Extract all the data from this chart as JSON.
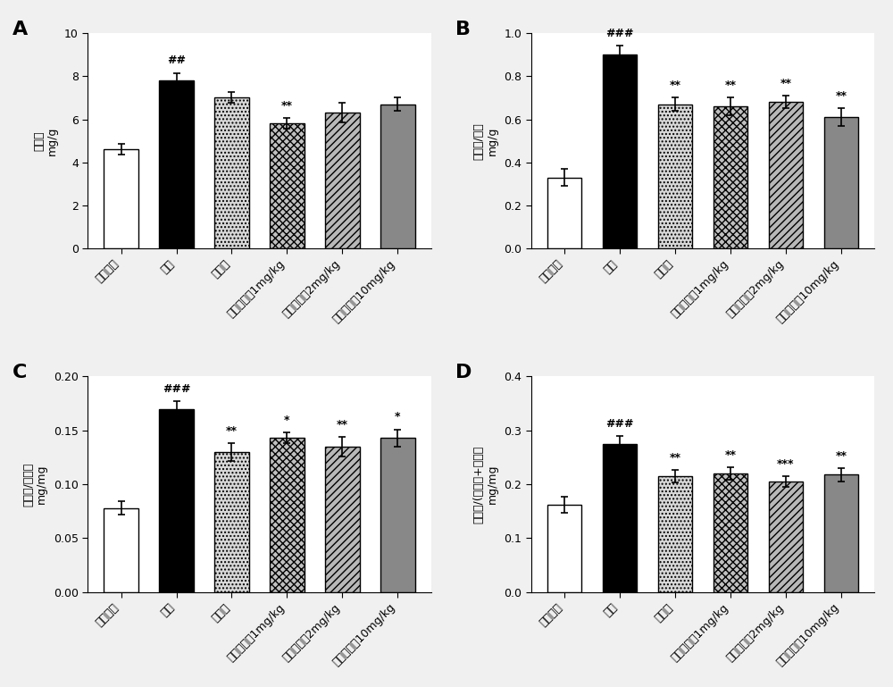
{
  "panels": [
    "A",
    "B",
    "C",
    "D"
  ],
  "categories": [
    "空白对照",
    "模型",
    "波生坦",
    "乙酰紫草球1mg/kg",
    "乙酰紫草球2mg/kg",
    "乙酰紫草球10mg/kg"
  ],
  "A": {
    "ylabel_top": "mg/g",
    "ylabel_bottom": "肺体重",
    "ylim": [
      0,
      10
    ],
    "yticks": [
      0,
      2,
      4,
      6,
      8,
      10
    ],
    "values": [
      4.6,
      7.8,
      7.0,
      5.8,
      6.3,
      6.7
    ],
    "errors": [
      0.25,
      0.35,
      0.25,
      0.25,
      0.45,
      0.3
    ],
    "bar_sigs": [
      "",
      "##",
      "",
      "**",
      "",
      ""
    ]
  },
  "B": {
    "ylabel_top": "mg/g",
    "ylabel_bottom": "右心室/体重",
    "ylim": [
      0,
      1.0
    ],
    "yticks": [
      0.0,
      0.2,
      0.4,
      0.6,
      0.8,
      1.0
    ],
    "values": [
      0.33,
      0.9,
      0.67,
      0.66,
      0.68,
      0.61
    ],
    "errors": [
      0.04,
      0.04,
      0.03,
      0.04,
      0.03,
      0.04
    ],
    "bar_sigs": [
      "",
      "###",
      "**",
      "**",
      "**",
      "**"
    ]
  },
  "C": {
    "ylabel_top": "mg/mg",
    "ylabel_bottom": "右心室/心脏重",
    "ylim": [
      0,
      0.2
    ],
    "yticks": [
      0.0,
      0.05,
      0.1,
      0.15,
      0.2
    ],
    "values": [
      0.078,
      0.17,
      0.13,
      0.143,
      0.135,
      0.143
    ],
    "errors": [
      0.006,
      0.007,
      0.008,
      0.005,
      0.009,
      0.008
    ],
    "bar_sigs": [
      "",
      "###",
      "**",
      "*",
      "**",
      "*"
    ]
  },
  "D": {
    "ylabel_top": "mg/mg",
    "ylabel_bottom": "右心室/(左心室+室间隔",
    "ylim": [
      0,
      0.4
    ],
    "yticks": [
      0.0,
      0.1,
      0.2,
      0.3,
      0.4
    ],
    "values": [
      0.162,
      0.275,
      0.215,
      0.22,
      0.205,
      0.218
    ],
    "errors": [
      0.015,
      0.015,
      0.012,
      0.012,
      0.01,
      0.012
    ],
    "bar_sigs": [
      "",
      "###",
      "**",
      "**",
      "***",
      "**"
    ]
  },
  "background_color": "#f0f0f0",
  "fig_width": 10.0,
  "fig_height": 7.69
}
